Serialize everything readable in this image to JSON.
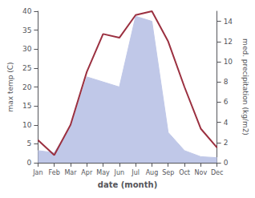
{
  "chart_data": {
    "type": "line",
    "xlabel": "date (month)",
    "ylabel": "max temp (C)",
    "y2label": "med. precipitation (kg/m2)",
    "categories": [
      "Jan",
      "Feb",
      "Mar",
      "Apr",
      "May",
      "Jun",
      "Jul",
      "Aug",
      "Sep",
      "Oct",
      "Nov",
      "Dec"
    ],
    "series": [
      {
        "type": "area",
        "axis": "y2",
        "color": "#c0c8e8",
        "values": [
          1.2,
          1.0,
          3.5,
          8.5,
          8.0,
          7.5,
          14.5,
          14.0,
          3.0,
          1.2,
          0.6,
          0.5
        ]
      },
      {
        "type": "line",
        "color": "#9b3040",
        "values": [
          6,
          2,
          10,
          24,
          34,
          33,
          39,
          40,
          32,
          20,
          9,
          4
        ]
      }
    ],
    "ylim": [
      0,
      40
    ],
    "yticks": [
      0,
      5,
      10,
      15,
      20,
      25,
      30,
      35,
      40
    ],
    "y2lim": [
      0,
      15
    ],
    "y2ticks": [
      0,
      2,
      4,
      6,
      8,
      10,
      12,
      14
    ],
    "grid": false
  }
}
